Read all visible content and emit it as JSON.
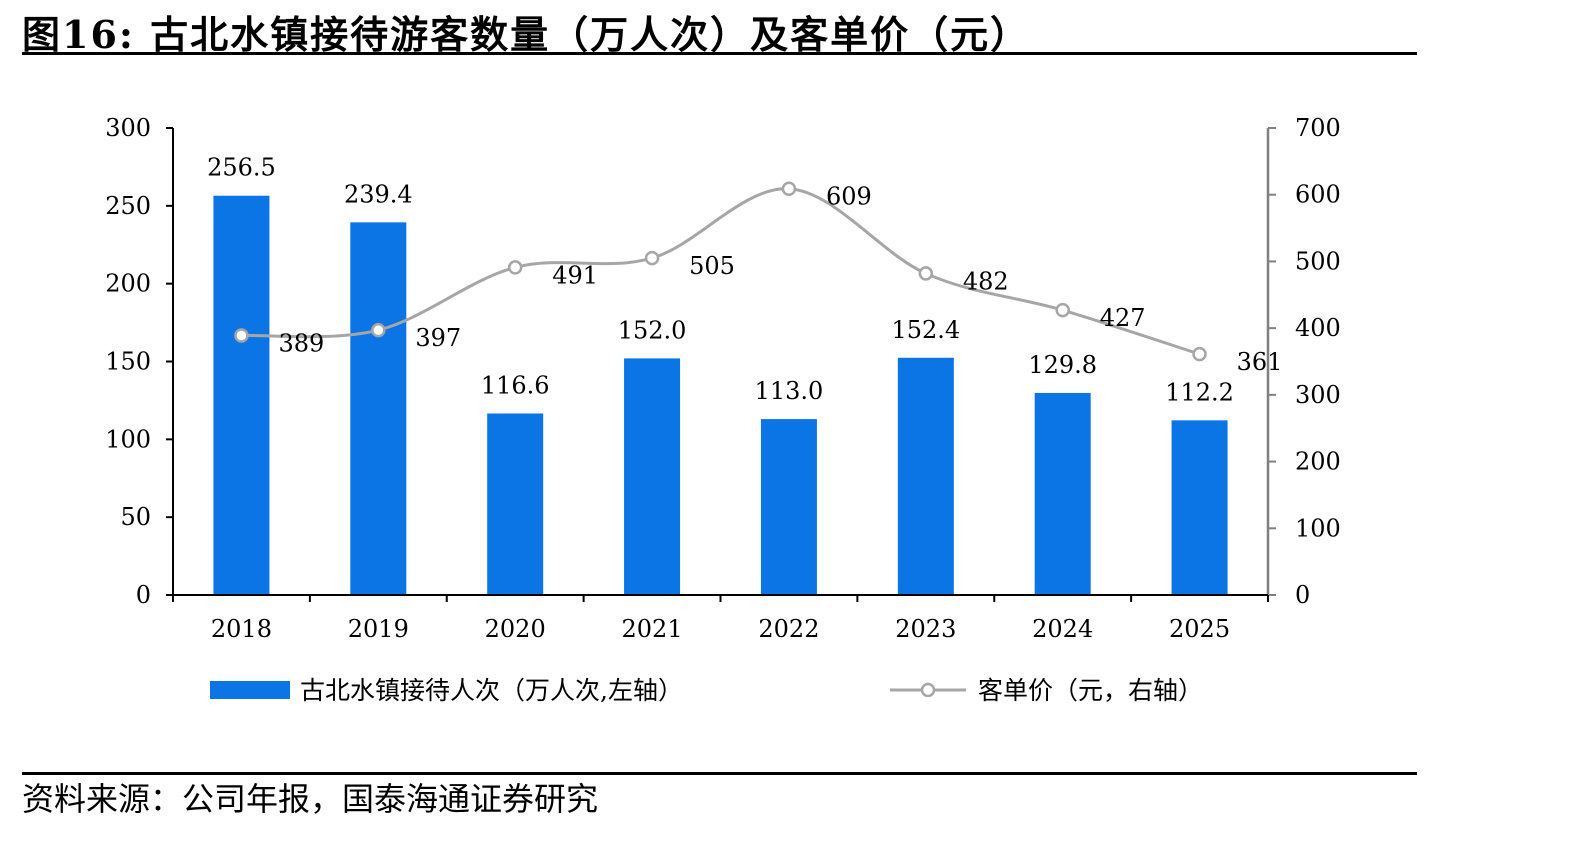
{
  "figure": {
    "title": "图16:  古北水镇接待游客数量（万人次）及客单价（元）",
    "source": "资料来源：公司年报，国泰海通证券研究"
  },
  "colors": {
    "bar": "#0b75e6",
    "line": "#a6a6a6",
    "axis": "#000000",
    "right_axis": "#808080"
  },
  "chart_data": {
    "type": "bar",
    "categories": [
      "2018",
      "2019",
      "2020",
      "2021",
      "2022",
      "2023",
      "2024",
      "2025"
    ],
    "series": [
      {
        "name": "古北水镇接待人次（万人次,左轴）",
        "type": "bar",
        "axis": "left",
        "values": [
          256.5,
          239.4,
          116.6,
          152.0,
          113.0,
          152.4,
          129.8,
          112.2
        ],
        "labels": [
          "256.5",
          "239.4",
          "116.6",
          "152.0",
          "113.0",
          "152.4",
          "129.8",
          "112.2"
        ]
      },
      {
        "name": "客单价（元，右轴）",
        "type": "line",
        "axis": "right",
        "values": [
          389,
          397,
          491,
          505,
          609,
          482,
          427,
          361
        ],
        "labels": [
          "389",
          "397",
          "491",
          "505",
          "609",
          "482",
          "427",
          "361"
        ]
      }
    ],
    "y_left": {
      "range": [
        0,
        300
      ],
      "ticks": [
        "0",
        "50",
        "100",
        "150",
        "200",
        "250",
        "300"
      ]
    },
    "y_right": {
      "range": [
        0,
        700
      ],
      "ticks": [
        "0",
        "100",
        "200",
        "300",
        "400",
        "500",
        "600",
        "700"
      ]
    },
    "grid": false,
    "legend_position": "bottom"
  }
}
